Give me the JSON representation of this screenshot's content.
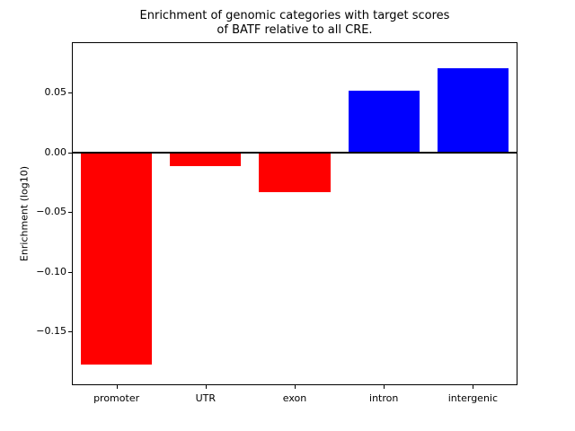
{
  "chart_data": {
    "type": "bar",
    "title": "Enrichment of genomic categories with target scores\nof BATF relative to all CRE.",
    "xlabel": "",
    "ylabel": "Enrichment (log10)",
    "categories": [
      "promoter",
      "UTR",
      "exon",
      "intron",
      "intergenic"
    ],
    "values": [
      -0.178,
      -0.011,
      -0.033,
      0.052,
      0.071
    ],
    "ylim": [
      -0.195,
      0.0925
    ],
    "yticks": [
      0.05,
      0.0,
      -0.05,
      -0.1,
      -0.15
    ],
    "bar_colors": {
      "positive": "#0000ff",
      "negative": "#ff0000"
    },
    "zero_line": true,
    "grid": false,
    "legend_position": "none"
  }
}
